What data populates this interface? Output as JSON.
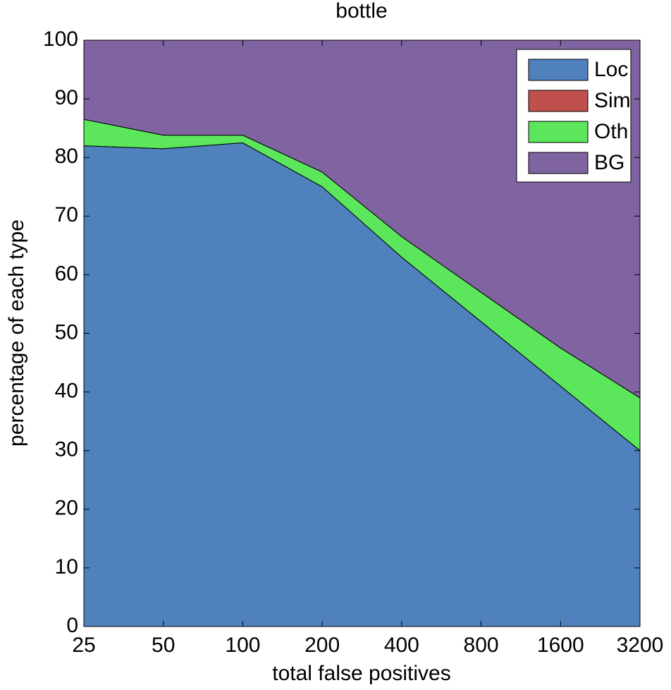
{
  "chart_data": {
    "type": "stacked_area",
    "title": "bottle",
    "x_label": "total false positives",
    "y_label": "percentage of each type",
    "x": [
      25,
      50,
      100,
      200,
      400,
      800,
      1600,
      3200
    ],
    "xlim": [
      25,
      3200
    ],
    "xticks": [
      25,
      50,
      100,
      200,
      400,
      800,
      1600,
      3200
    ],
    "x_scale": "log",
    "ylim": [
      0,
      100
    ],
    "yticks": [
      0,
      10,
      20,
      30,
      40,
      50,
      60,
      70,
      80,
      90,
      100
    ],
    "legend_position": "upper right",
    "series": [
      {
        "name": "Loc",
        "color": "#4f81bd",
        "values": [
          82,
          81.5,
          82.5,
          75,
          63,
          52,
          41,
          30
        ]
      },
      {
        "name": "Sim",
        "color": "#c0504d",
        "values": [
          0,
          0,
          0,
          0,
          0,
          0,
          0,
          0
        ]
      },
      {
        "name": "Oth",
        "color": "#5ce65c",
        "values": [
          4.5,
          2.3,
          1.3,
          2.5,
          3.5,
          5,
          6.5,
          9
        ]
      },
      {
        "name": "BG",
        "color": "#8064a2",
        "values": [
          13.5,
          16.2,
          16.2,
          22.5,
          33.5,
          43,
          52.5,
          61
        ]
      }
    ]
  }
}
